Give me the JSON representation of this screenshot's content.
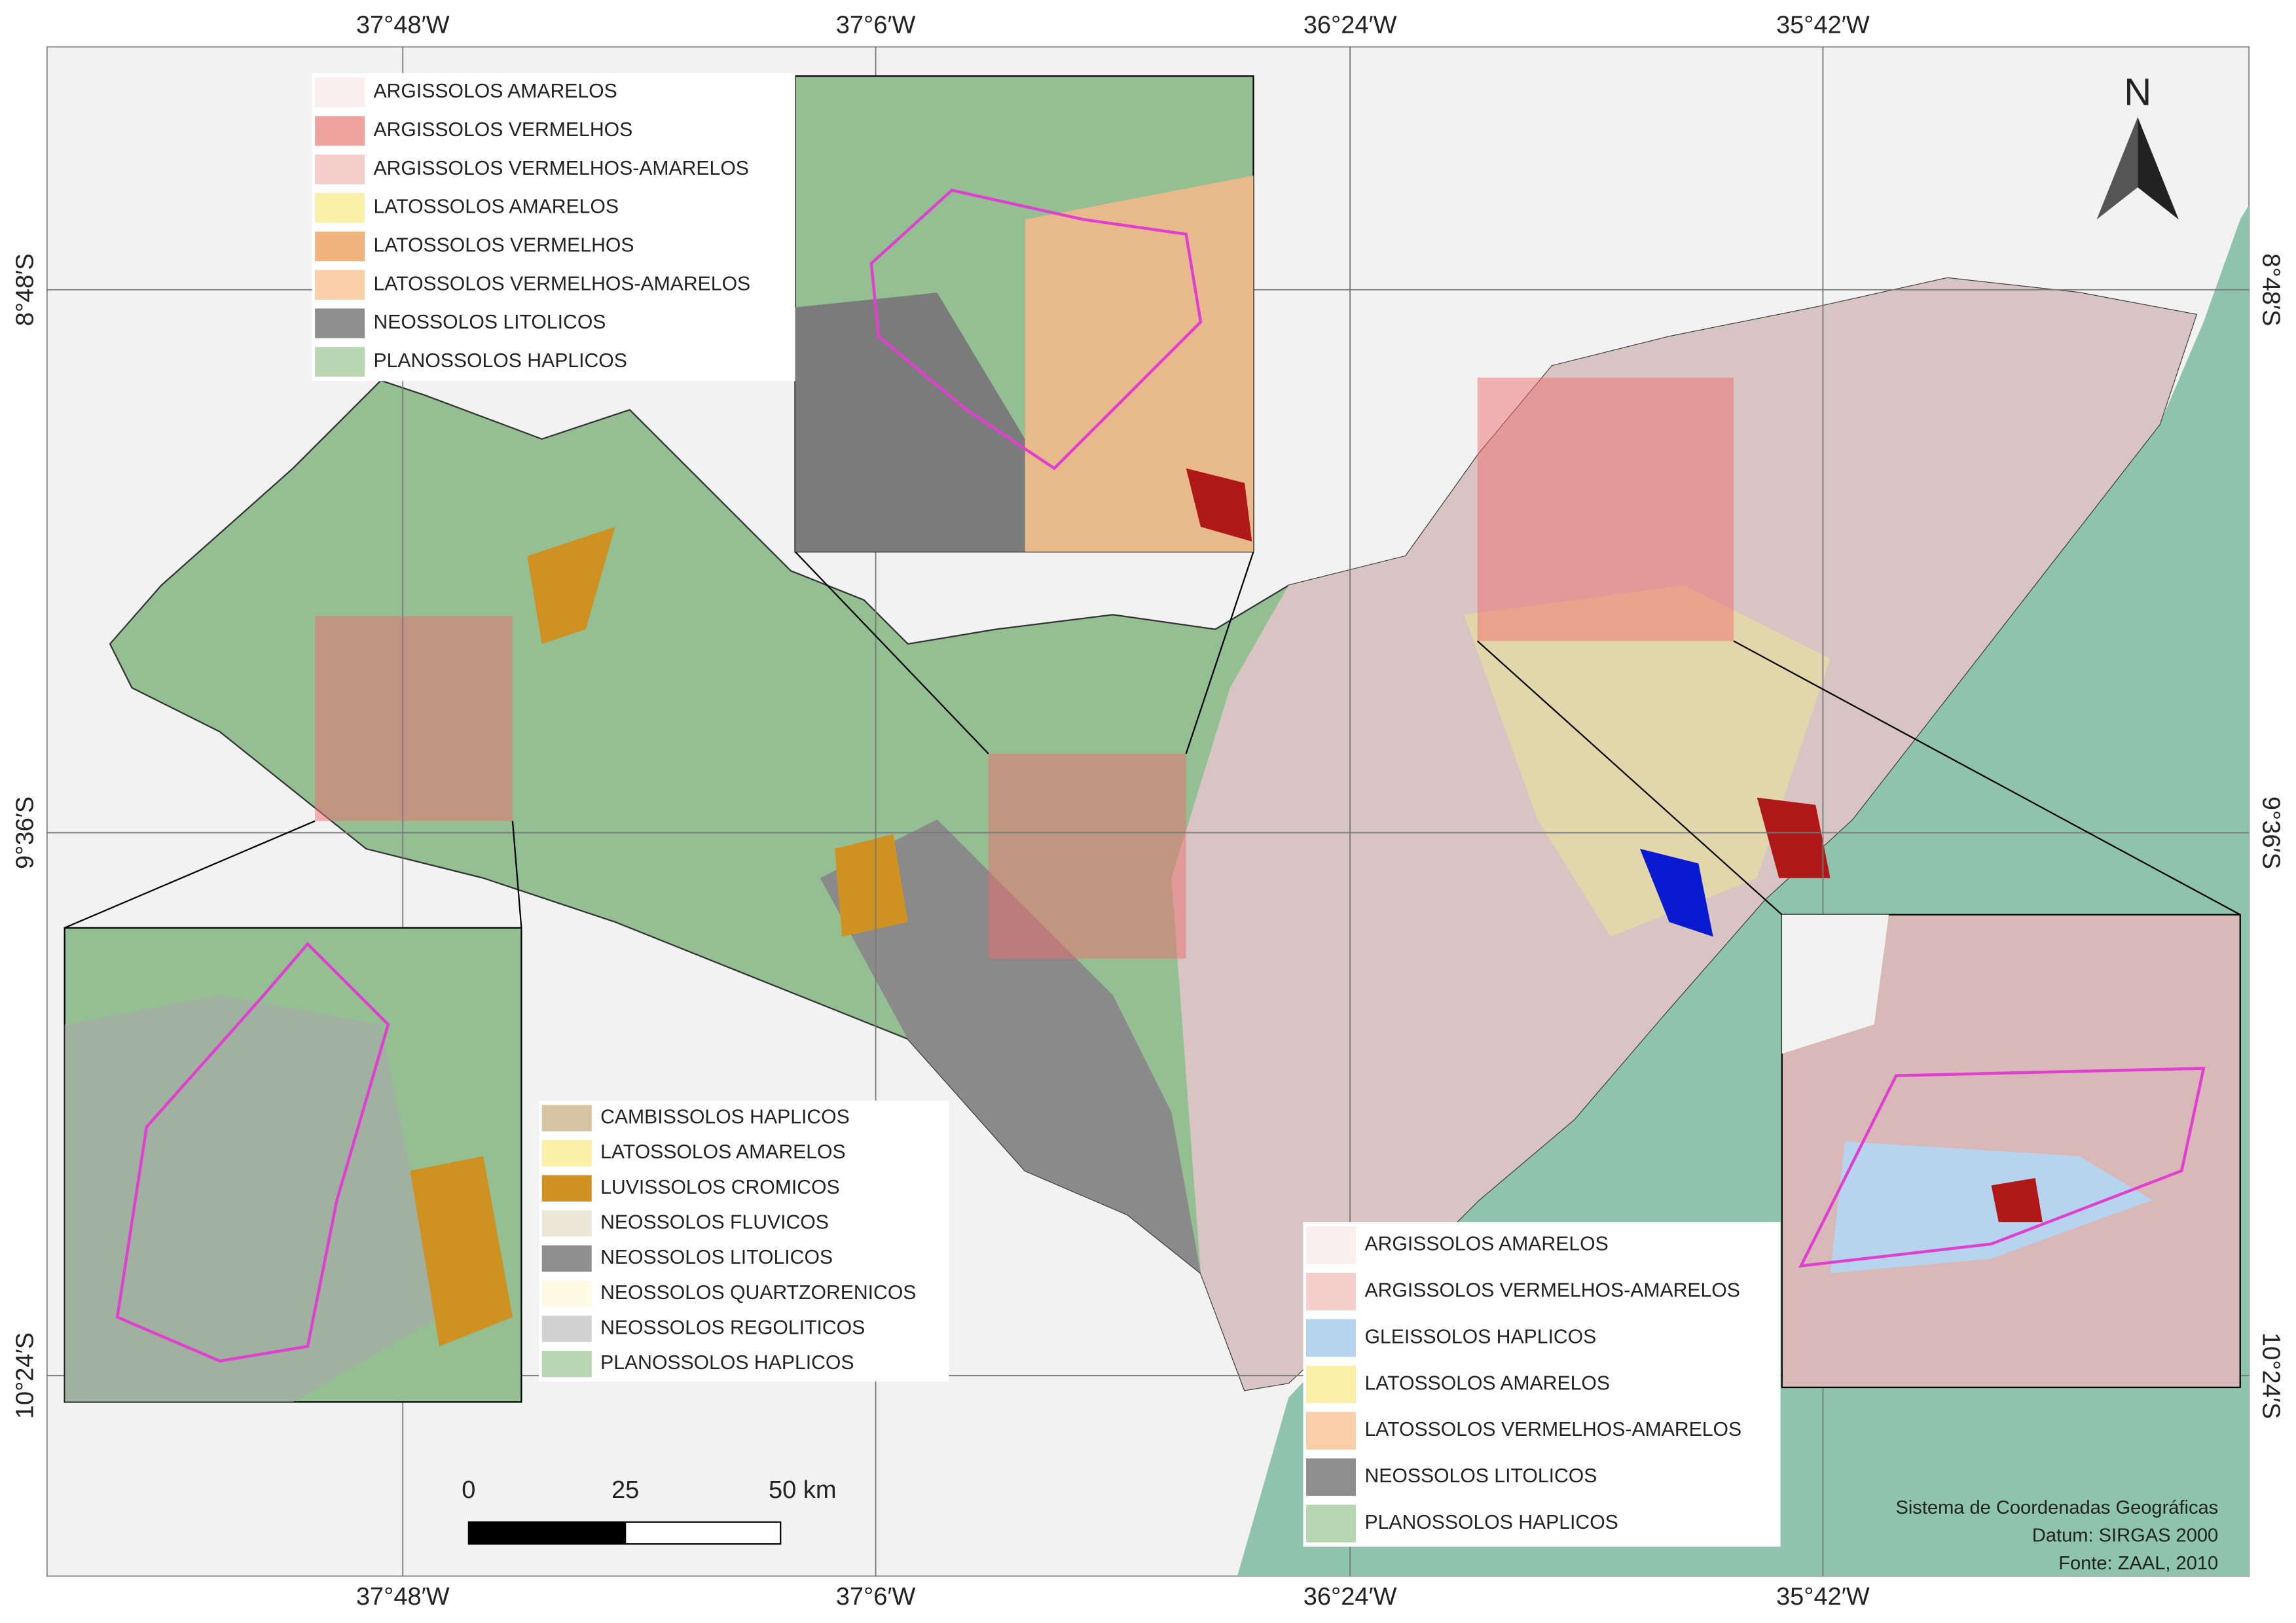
{
  "graticule": {
    "top": [
      "37°48′W",
      "37°6′W",
      "36°24′W",
      "35°42′W"
    ],
    "bottom": [
      "37°48′W",
      "37°6′W",
      "36°24′W",
      "35°42′W"
    ],
    "left": [
      "8°48′S",
      "9°36′S",
      "10°24′S"
    ],
    "right": [
      "8°48′S",
      "9°36′S",
      "10°24′S"
    ]
  },
  "legends": [
    {
      "items": [
        {
          "label": "ARGISSOLOS AMARELOS",
          "color": "#fbeeee"
        },
        {
          "label": "ARGISSOLOS VERMELHOS",
          "color": "#eea39f"
        },
        {
          "label": "ARGISSOLOS VERMELHOS-AMARELOS",
          "color": "#f6cfcc"
        },
        {
          "label": "LATOSSOLOS AMARELOS",
          "color": "#fbf0a8"
        },
        {
          "label": "LATOSSOLOS VERMELHOS",
          "color": "#f2b47f"
        },
        {
          "label": "LATOSSOLOS VERMELHOS-AMARELOS",
          "color": "#f8cfa6"
        },
        {
          "label": "NEOSSOLOS LITOLICOS",
          "color": "#8f8f8f"
        },
        {
          "label": "PLANOSSOLOS HAPLICOS",
          "color": "#b8d6b2"
        }
      ]
    },
    {
      "items": [
        {
          "label": "CAMBISSOLOS HAPLICOS",
          "color": "#d8c4a2"
        },
        {
          "label": "LATOSSOLOS AMARELOS",
          "color": "#fbf0a8"
        },
        {
          "label": "LUVISSOLOS CROMICOS",
          "color": "#cf9222"
        },
        {
          "label": "NEOSSOLOS FLUVICOS",
          "color": "#ebe8d7"
        },
        {
          "label": "NEOSSOLOS LITOLICOS",
          "color": "#8f8f8f"
        },
        {
          "label": "NEOSSOLOS QUARTZORENICOS",
          "color": "#fdfbe4"
        },
        {
          "label": "NEOSSOLOS REGOLITICOS",
          "color": "#d2d2d2"
        },
        {
          "label": "PLANOSSOLOS HAPLICOS",
          "color": "#b8d6b2"
        }
      ]
    },
    {
      "items": [
        {
          "label": "ARGISSOLOS AMARELOS",
          "color": "#fbeeee"
        },
        {
          "label": "ARGISSOLOS VERMELHOS-AMARELOS",
          "color": "#f6cfcc"
        },
        {
          "label": "GLEISSOLOS HAPLICOS",
          "color": "#b7d4ee"
        },
        {
          "label": "LATOSSOLOS AMARELOS",
          "color": "#fbf0a8"
        },
        {
          "label": "LATOSSOLOS VERMELHOS-AMARELOS",
          "color": "#f8cfa6"
        },
        {
          "label": "NEOSSOLOS LITOLICOS",
          "color": "#8f8f8f"
        },
        {
          "label": "PLANOSSOLOS HAPLICOS",
          "color": "#b8d6b2"
        }
      ]
    }
  ],
  "scale_bar": {
    "labels": [
      "0",
      "25",
      "50 km"
    ]
  },
  "north": "N",
  "credits": [
    "Sistema de Coordenadas Geográficas",
    "Datum: SIRGAS 2000",
    "Fonte: ZAAL, 2010"
  ]
}
